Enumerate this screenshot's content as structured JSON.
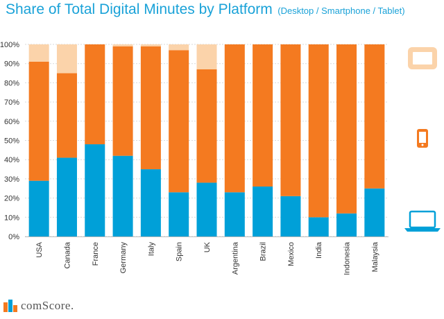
{
  "title": "Share of Total Digital Minutes by Platform",
  "subtitle": "(Desktop / Smartphone / Tablet)",
  "brand": "comScore.",
  "legend": [
    {
      "icon": "tablet-icon",
      "color": "#fbd3aa"
    },
    {
      "icon": "smartphone-icon",
      "color": "#f47a20"
    },
    {
      "icon": "laptop-icon",
      "color": "#00a0d8"
    }
  ],
  "chart_data": {
    "type": "bar",
    "stacked": true,
    "categories": [
      "USA",
      "Canada",
      "France",
      "Germany",
      "Italy",
      "Spain",
      "UK",
      "Argentina",
      "Brazil",
      "Mexico",
      "India",
      "Indonesia",
      "Malaysia"
    ],
    "series": [
      {
        "values": [
          29,
          41,
          48,
          42,
          35,
          23,
          28,
          23,
          26,
          21,
          10,
          12,
          25
        ],
        "color": "#00a0d8"
      },
      {
        "values": [
          62,
          44,
          52,
          57,
          64,
          74,
          59,
          77,
          74,
          79,
          90,
          88,
          75
        ],
        "color": "#f47a20"
      },
      {
        "values": [
          9,
          15,
          0,
          1,
          1,
          3,
          13,
          0,
          0,
          0,
          0,
          0,
          0
        ],
        "color": "#fbd3aa"
      }
    ],
    "yticks": [
      "0%",
      "10%",
      "20%",
      "30%",
      "40%",
      "50%",
      "60%",
      "70%",
      "80%",
      "90%",
      "100%"
    ],
    "ylim": [
      0,
      100
    ],
    "grid": true
  }
}
